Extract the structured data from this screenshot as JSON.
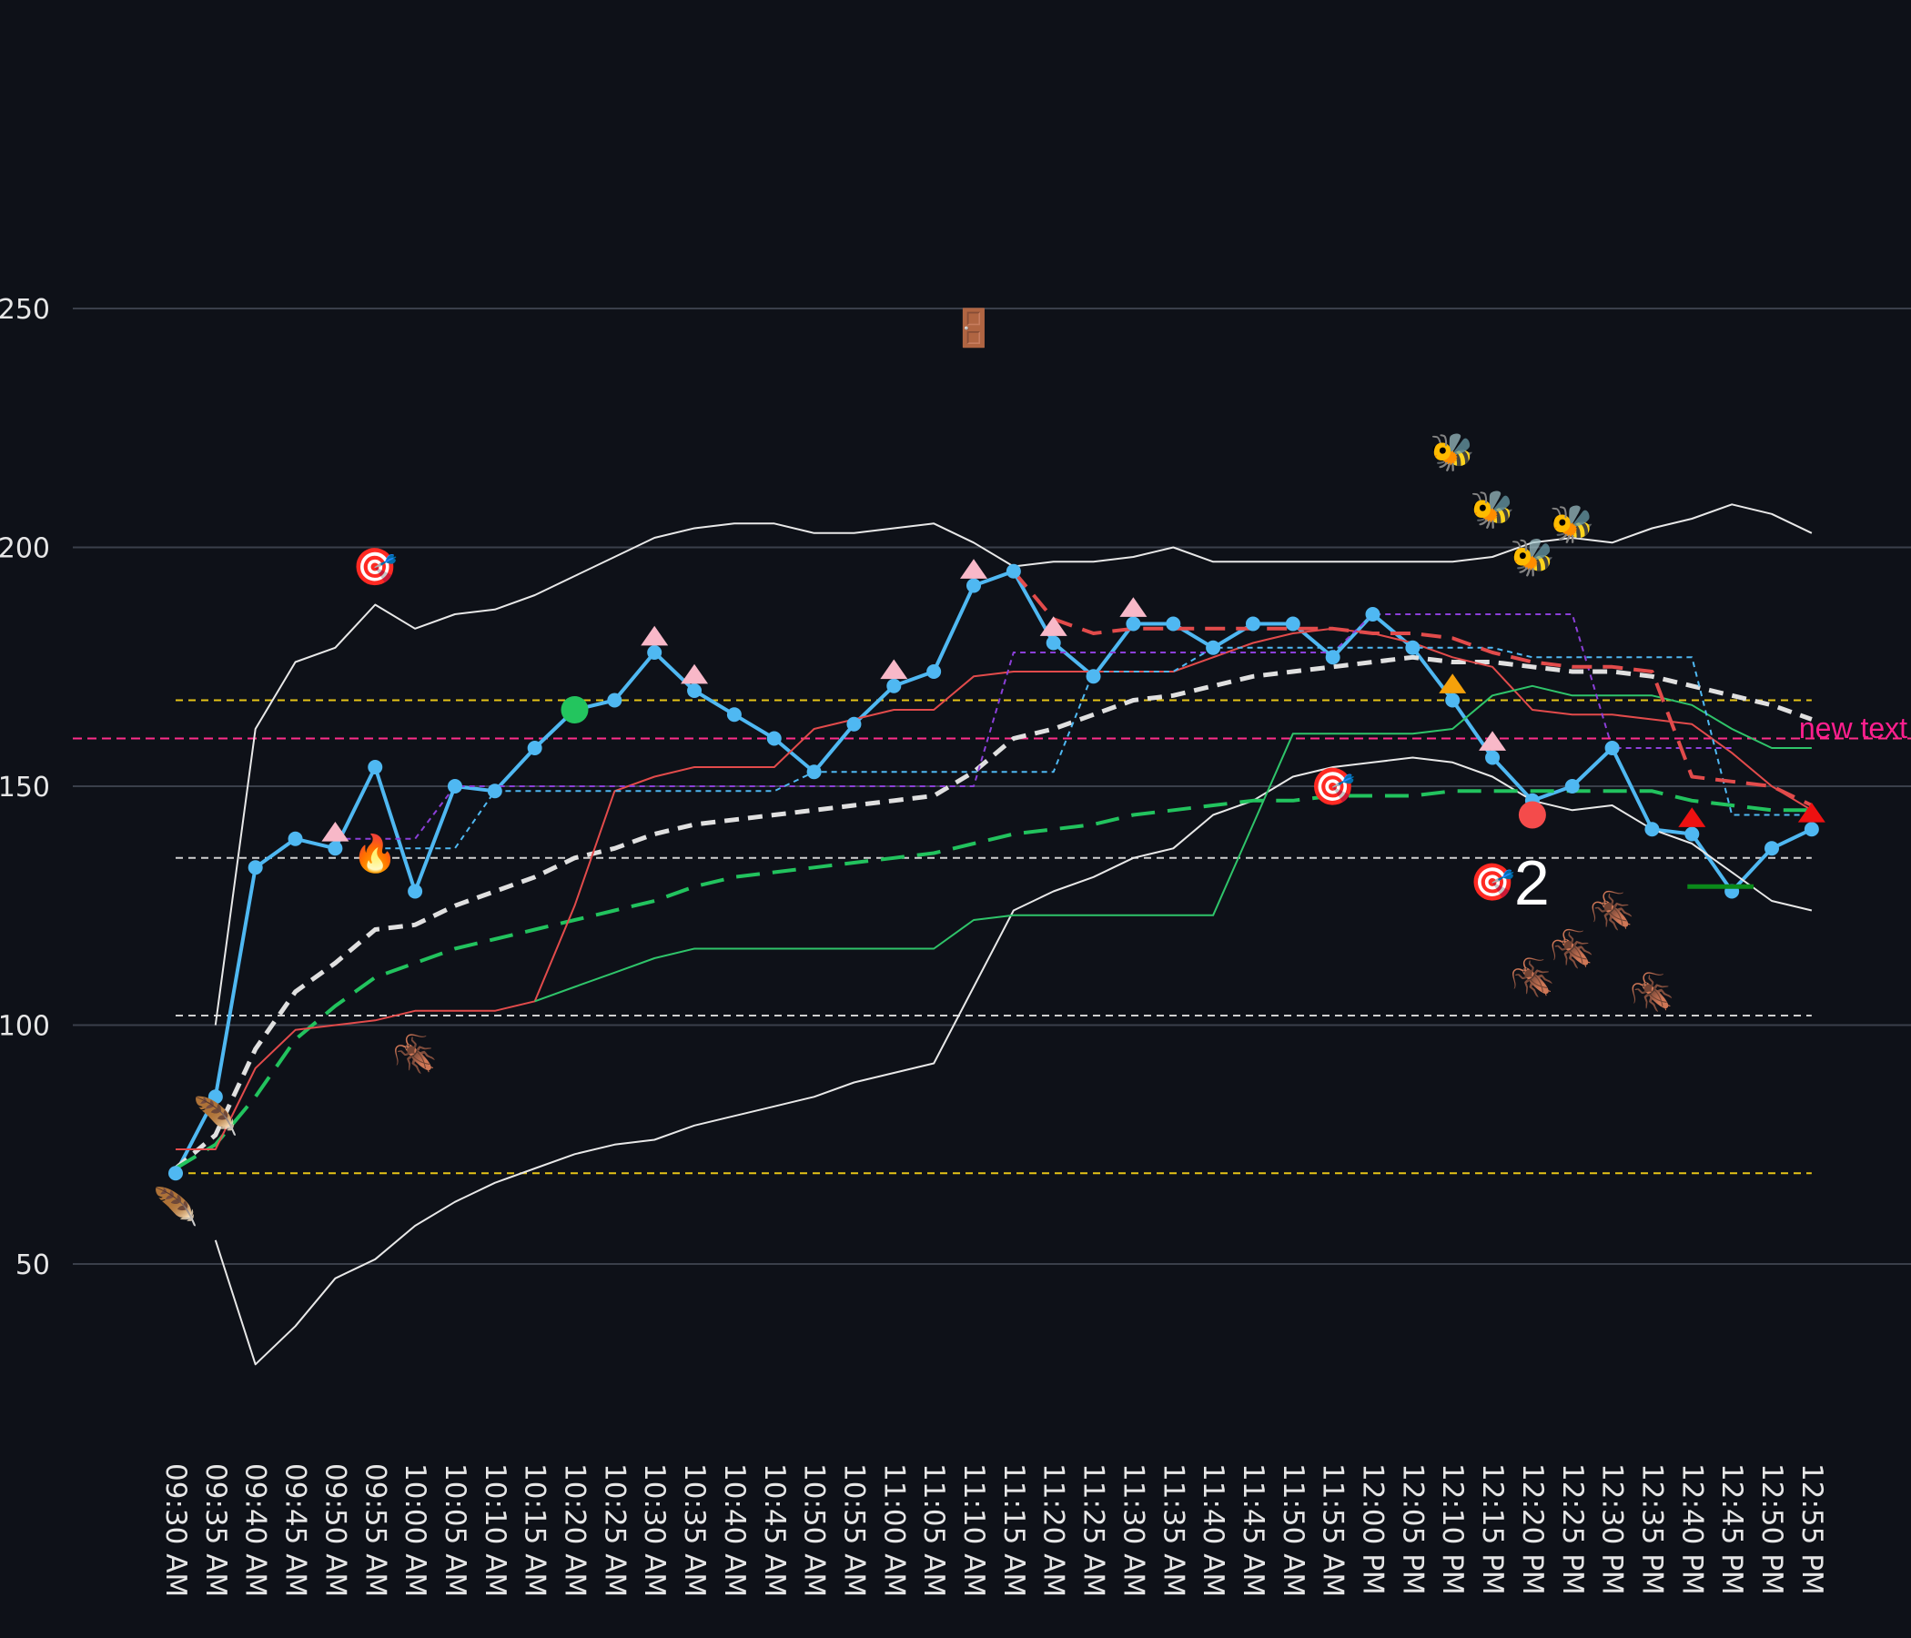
{
  "chart_data": {
    "type": "line",
    "title": "",
    "xlabel": "",
    "ylabel": "",
    "ylim": [
      20,
      300
    ],
    "yticks": [
      50,
      100,
      150,
      200,
      250
    ],
    "categories": [
      "09:30 AM",
      "09:35 AM",
      "09:40 AM",
      "09:45 AM",
      "09:50 AM",
      "09:55 AM",
      "10:00 AM",
      "10:05 AM",
      "10:10 AM",
      "10:15 AM",
      "10:20 AM",
      "10:25 AM",
      "10:30 AM",
      "10:35 AM",
      "10:40 AM",
      "10:45 AM",
      "10:50 AM",
      "10:55 AM",
      "11:00 AM",
      "11:05 AM",
      "11:10 AM",
      "11:15 AM",
      "11:20 AM",
      "11:25 AM",
      "11:30 AM",
      "11:35 AM",
      "11:40 AM",
      "11:45 AM",
      "11:50 AM",
      "11:55 AM",
      "12:00 PM",
      "12:05 PM",
      "12:10 PM",
      "12:15 PM",
      "12:20 PM",
      "12:25 PM",
      "12:30 PM",
      "12:35 PM",
      "12:40 PM",
      "12:45 PM",
      "12:50 PM",
      "12:55 PM"
    ],
    "series": [
      {
        "name": "price",
        "color": "#4fb8f2",
        "width": 4,
        "dash": "",
        "markers": true,
        "values": [
          69,
          85,
          133,
          139,
          137,
          154,
          128,
          150,
          149,
          158,
          166,
          168,
          178,
          170,
          165,
          160,
          153,
          163,
          171,
          174,
          192,
          195,
          180,
          173,
          184,
          184,
          179,
          184,
          184,
          177,
          186,
          179,
          168,
          156,
          147,
          150,
          158,
          141,
          140,
          128,
          137,
          141
        ]
      },
      {
        "name": "upper-band",
        "color": "#e8e8e8",
        "width": 2,
        "dash": "",
        "values": [
          null,
          100,
          162,
          176,
          179,
          188,
          183,
          186,
          187,
          190,
          194,
          198,
          202,
          204,
          205,
          205,
          203,
          203,
          204,
          205,
          201,
          196,
          197,
          197,
          198,
          200,
          197,
          197,
          197,
          197,
          197,
          197,
          197,
          198,
          201,
          202,
          201,
          204,
          206,
          209,
          207,
          203
        ]
      },
      {
        "name": "lower-band",
        "color": "#e8e8e8",
        "width": 2,
        "dash": "",
        "values": [
          null,
          55,
          29,
          37,
          47,
          51,
          58,
          63,
          67,
          70,
          73,
          75,
          76,
          79,
          81,
          83,
          85,
          88,
          90,
          92,
          108,
          124,
          128,
          131,
          135,
          137,
          144,
          147,
          152,
          154,
          155,
          156,
          155,
          152,
          147,
          145,
          146,
          141,
          138,
          132,
          126,
          124
        ]
      },
      {
        "name": "moving-average-slow",
        "color": "#e0e0e0",
        "width": 5,
        "dash": "16 10",
        "values": [
          70,
          77,
          95,
          107,
          113,
          120,
          121,
          125,
          128,
          131,
          135,
          137,
          140,
          142,
          143,
          144,
          145,
          146,
          147,
          148,
          153,
          160,
          162,
          165,
          168,
          169,
          171,
          173,
          174,
          175,
          176,
          177,
          176,
          176,
          175,
          174,
          174,
          173,
          171,
          169,
          167,
          164
        ]
      },
      {
        "name": "moving-average-fast",
        "color": "#22c35e",
        "width": 4,
        "dash": "26 14",
        "values": [
          70,
          75,
          85,
          97,
          104,
          110,
          113,
          116,
          118,
          120,
          122,
          124,
          126,
          129,
          131,
          132,
          133,
          134,
          135,
          136,
          138,
          140,
          141,
          142,
          144,
          145,
          146,
          147,
          147,
          148,
          148,
          148,
          149,
          149,
          149,
          149,
          149,
          149,
          147,
          146,
          145,
          145
        ]
      },
      {
        "name": "red-step",
        "color": "#e24b4b",
        "width": 2,
        "dash": "",
        "values": [
          74,
          74,
          91,
          99,
          100,
          101,
          103,
          103,
          103,
          105,
          125,
          149,
          152,
          154,
          154,
          154,
          162,
          164,
          166,
          166,
          173,
          174,
          174,
          174,
          174,
          174,
          177,
          180,
          182,
          183,
          182,
          180,
          177,
          175,
          166,
          165,
          165,
          164,
          163,
          157,
          150,
          145
        ]
      },
      {
        "name": "green-step",
        "color": "#2fc46a",
        "width": 2,
        "dash": "",
        "values": [
          null,
          null,
          null,
          null,
          null,
          null,
          null,
          null,
          null,
          105,
          108,
          111,
          114,
          116,
          116,
          116,
          116,
          116,
          116,
          116,
          122,
          123,
          123,
          123,
          123,
          123,
          123,
          142,
          161,
          161,
          161,
          161,
          162,
          169,
          171,
          169,
          169,
          169,
          167,
          162,
          158,
          158
        ]
      },
      {
        "name": "purple-step",
        "color": "#8b3fd8",
        "width": 2,
        "dash": "6 5",
        "values": [
          null,
          null,
          null,
          null,
          139,
          139,
          139,
          150,
          150,
          150,
          150,
          150,
          150,
          150,
          150,
          150,
          150,
          150,
          150,
          150,
          150,
          178,
          178,
          178,
          178,
          178,
          178,
          178,
          178,
          178,
          186,
          186,
          186,
          186,
          186,
          186,
          158,
          158,
          158,
          158,
          null,
          null
        ]
      },
      {
        "name": "blue-step",
        "color": "#4fb8f2",
        "width": 2,
        "dash": "6 5",
        "values": [
          null,
          null,
          null,
          null,
          null,
          137,
          137,
          137,
          149,
          149,
          149,
          149,
          149,
          149,
          149,
          149,
          153,
          153,
          153,
          153,
          153,
          153,
          153,
          174,
          174,
          174,
          179,
          179,
          179,
          179,
          179,
          179,
          179,
          179,
          177,
          177,
          177,
          177,
          177,
          144,
          144,
          144
        ]
      },
      {
        "name": "red-dashed-stop",
        "color": "#e24b4b",
        "width": 4,
        "dash": "22 12",
        "values": [
          null,
          null,
          null,
          null,
          null,
          null,
          null,
          null,
          null,
          null,
          null,
          null,
          null,
          null,
          null,
          null,
          null,
          null,
          null,
          null,
          null,
          195,
          185,
          182,
          183,
          183,
          183,
          183,
          183,
          183,
          182,
          182,
          181,
          178,
          176,
          175,
          175,
          174,
          152,
          151,
          150,
          146
        ]
      }
    ],
    "horizontal_lines": [
      {
        "name": "yellow-level-high",
        "y": 168,
        "color": "#e6c417",
        "dash": "8 6"
      },
      {
        "name": "magenta-level",
        "y": 160,
        "color": "#ff2d8a",
        "dash": "10 6",
        "full_width": true
      },
      {
        "name": "white-level-mid",
        "y": 135,
        "color": "#cfcfcf",
        "dash": "8 6"
      },
      {
        "name": "white-level-low",
        "y": 102,
        "color": "#cfcfcf",
        "dash": "8 6"
      },
      {
        "name": "yellow-level-low",
        "y": 69,
        "color": "#e6c417",
        "dash": "8 6"
      }
    ],
    "marker_pink_up_triangles": [
      {
        "x": "09:50 AM",
        "y": 140
      },
      {
        "x": "10:30 AM",
        "y": 181
      },
      {
        "x": "10:35 AM",
        "y": 173
      },
      {
        "x": "11:00 AM",
        "y": 174
      },
      {
        "x": "11:10 AM",
        "y": 195
      },
      {
        "x": "11:20 AM",
        "y": 183
      },
      {
        "x": "11:30 AM",
        "y": 187
      },
      {
        "x": "12:15 PM",
        "y": 159
      }
    ],
    "marker_red_up_triangles": [
      {
        "x": "12:40 PM",
        "y": 143
      },
      {
        "x": "12:55 PM",
        "y": 144
      }
    ],
    "marker_orange_triangle": {
      "x": "12:10 PM",
      "y": 171
    },
    "marker_green_dot": {
      "x": "10:20 AM",
      "y": 166
    },
    "marker_red_dot": {
      "x": "12:20 PM",
      "y": 144
    },
    "green_segment": {
      "x1": "12:40 PM",
      "x2": "12:50 PM",
      "y": 129
    },
    "annotations": [
      {
        "text": "new text",
        "x": "12:55 PM",
        "y": 162
      },
      {
        "text": "2",
        "x": "12:20 PM",
        "y": 130
      }
    ],
    "emoji_markers": [
      {
        "name": "target-icon",
        "glyph": "🎯",
        "x": "09:55 AM",
        "y": 196
      },
      {
        "name": "target-icon",
        "glyph": "🎯",
        "x": "11:55 AM",
        "y": 150
      },
      {
        "name": "target-icon",
        "glyph": "🎯",
        "x": "12:15 PM",
        "y": 130
      },
      {
        "name": "door-icon",
        "glyph": "🚪",
        "x": "11:10 AM",
        "y": 246
      },
      {
        "name": "bee-icon",
        "glyph": "🐝",
        "x": "12:10 PM",
        "y": 220
      },
      {
        "name": "bee-icon",
        "glyph": "🐝",
        "x": "12:15 PM",
        "y": 208
      },
      {
        "name": "bee-icon",
        "glyph": "🐝",
        "x": "12:20 PM",
        "y": 198
      },
      {
        "name": "bee-icon",
        "glyph": "🐝",
        "x": "12:25 PM",
        "y": 205
      },
      {
        "name": "fire-icon",
        "glyph": "🔥",
        "x": "09:55 AM",
        "y": 136
      },
      {
        "name": "beetle-icon",
        "glyph": "🪳",
        "x": "10:00 AM",
        "y": 94
      },
      {
        "name": "beetle-icon",
        "glyph": "🪳",
        "x": "12:20 PM",
        "y": 110
      },
      {
        "name": "beetle-icon",
        "glyph": "🪳",
        "x": "12:25 PM",
        "y": 116
      },
      {
        "name": "beetle-icon",
        "glyph": "🪳",
        "x": "12:30 PM",
        "y": 124
      },
      {
        "name": "beetle-icon",
        "glyph": "🪳",
        "x": "12:35 PM",
        "y": 107
      },
      {
        "name": "feather-icon",
        "glyph": "🪶",
        "x": "09:35 AM",
        "y": 81
      },
      {
        "name": "feather-icon",
        "glyph": "🪶",
        "x": "09:30 AM",
        "y": 62
      }
    ]
  }
}
